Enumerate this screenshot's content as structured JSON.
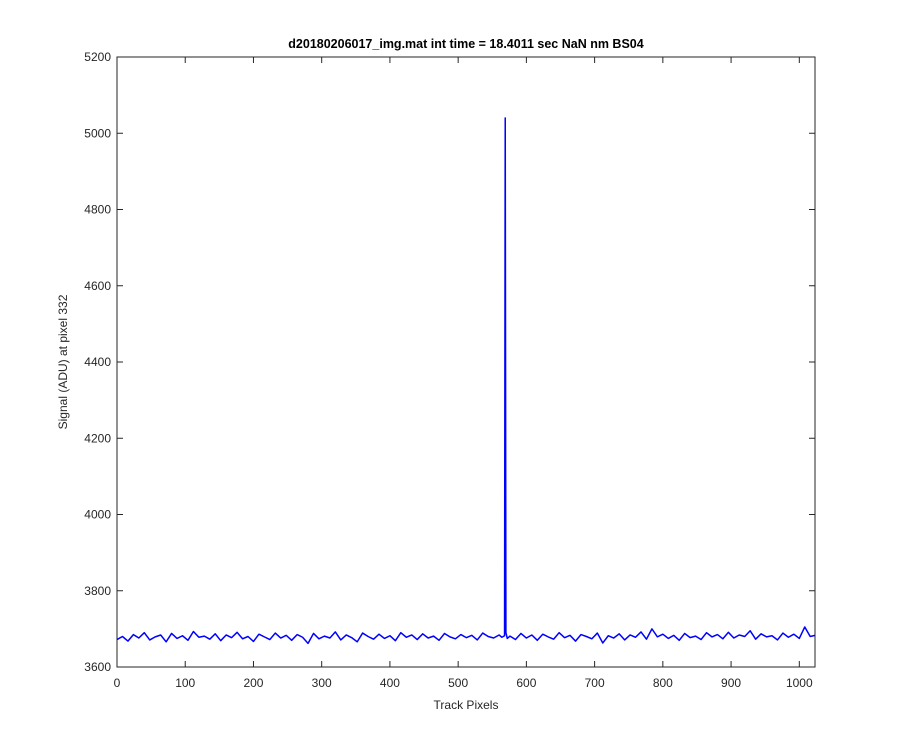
{
  "chart_data": {
    "type": "line",
    "title": "d20180206017_img.mat int time = 18.4011 sec  NaN nm BS04",
    "xlabel": "Track Pixels",
    "ylabel": "Signal (ADU) at pixel 332",
    "color": "#0000ff",
    "xlim": [
      0,
      1023
    ],
    "ylim": [
      3600,
      5200
    ],
    "xticks": [
      0,
      100,
      200,
      300,
      400,
      500,
      600,
      700,
      800,
      900,
      1000
    ],
    "yticks": [
      3600,
      3800,
      4000,
      4200,
      4400,
      4600,
      4800,
      5000,
      5200
    ],
    "x": [
      0,
      8,
      16,
      24,
      32,
      40,
      48,
      56,
      64,
      72,
      80,
      88,
      96,
      104,
      112,
      120,
      128,
      136,
      144,
      152,
      160,
      168,
      176,
      184,
      192,
      200,
      208,
      216,
      224,
      232,
      240,
      248,
      256,
      264,
      272,
      280,
      288,
      296,
      304,
      312,
      320,
      328,
      336,
      344,
      352,
      360,
      368,
      376,
      384,
      392,
      400,
      408,
      416,
      424,
      432,
      440,
      448,
      456,
      464,
      472,
      480,
      488,
      496,
      504,
      512,
      520,
      528,
      536,
      544,
      552,
      560,
      564,
      568,
      569,
      570,
      572,
      576,
      584,
      592,
      600,
      608,
      616,
      624,
      632,
      640,
      648,
      656,
      664,
      672,
      680,
      688,
      696,
      704,
      712,
      720,
      728,
      736,
      744,
      752,
      760,
      768,
      776,
      784,
      792,
      800,
      808,
      816,
      824,
      832,
      840,
      848,
      856,
      864,
      872,
      880,
      888,
      896,
      904,
      912,
      920,
      928,
      936,
      944,
      952,
      960,
      968,
      976,
      984,
      992,
      1000,
      1008,
      1016,
      1023
    ],
    "values": [
      3672,
      3680,
      3668,
      3685,
      3676,
      3690,
      3671,
      3679,
      3684,
      3666,
      3688,
      3675,
      3682,
      3670,
      3693,
      3678,
      3681,
      3673,
      3687,
      3669,
      3684,
      3677,
      3691,
      3674,
      3680,
      3667,
      3686,
      3679,
      3672,
      3689,
      3676,
      3683,
      3670,
      3685,
      3678,
      3662,
      3688,
      3674,
      3681,
      3676,
      3692,
      3671,
      3684,
      3677,
      3666,
      3689,
      3680,
      3673,
      3686,
      3675,
      3682,
      3669,
      3690,
      3678,
      3684,
      3672,
      3687,
      3676,
      3681,
      3670,
      3688,
      3679,
      3674,
      3685,
      3677,
      3683,
      3671,
      3689,
      3680,
      3676,
      3684,
      3678,
      3682,
      5040,
      3690,
      3675,
      3681,
      3672,
      3688,
      3676,
      3684,
      3670,
      3686,
      3679,
      3673,
      3690,
      3677,
      3683,
      3668,
      3685,
      3680,
      3674,
      3689,
      3663,
      3682,
      3676,
      3687,
      3671,
      3684,
      3678,
      3692,
      3673,
      3700,
      3679,
      3686,
      3675,
      3683,
      3670,
      3688,
      3677,
      3681,
      3672,
      3690,
      3679,
      3685,
      3674,
      3691,
      3676,
      3684,
      3680,
      3695,
      3673,
      3687,
      3679,
      3682,
      3671,
      3689,
      3678,
      3686,
      3675,
      3705,
      3680,
      3683
    ]
  }
}
